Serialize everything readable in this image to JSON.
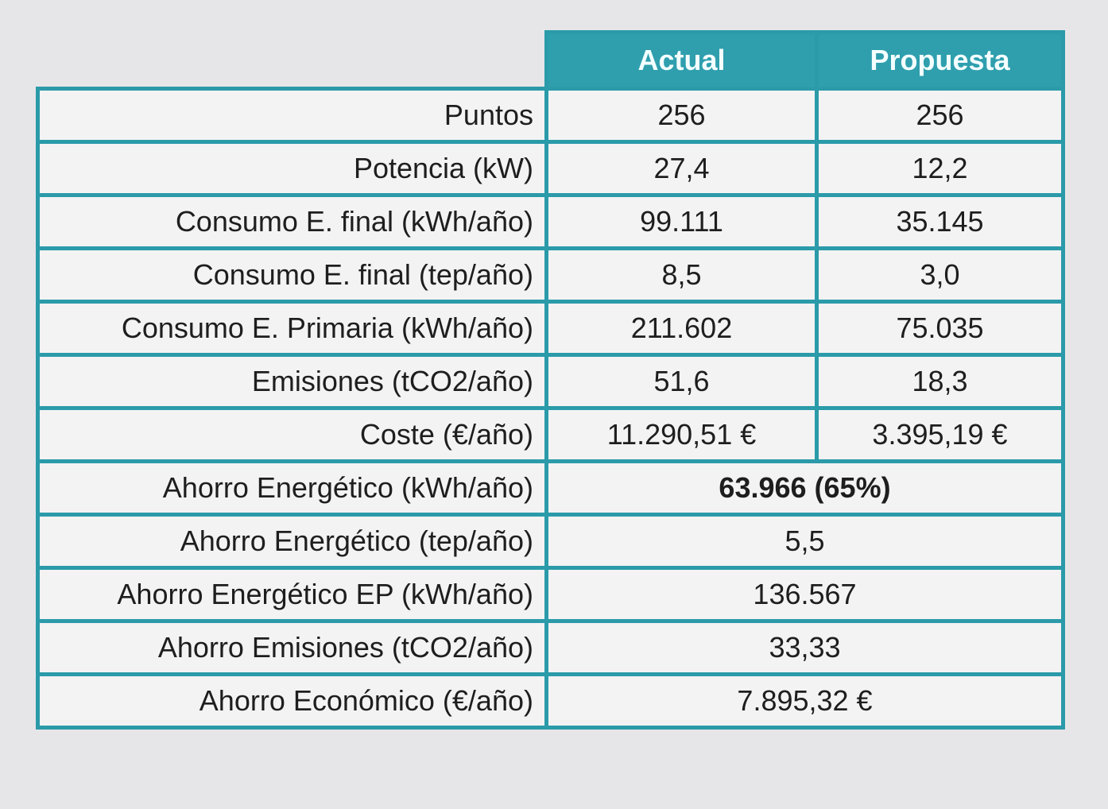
{
  "table": {
    "header": [
      "Actual",
      "Propuesta"
    ],
    "rows": [
      [
        "Puntos",
        "256",
        "256"
      ],
      [
        "Potencia (kW)",
        "27,4",
        "12,2"
      ],
      [
        "Consumo E. final (kWh/año)",
        "99.111",
        "35.145"
      ],
      [
        "Consumo E. final (tep/año)",
        "8,5",
        "3,0"
      ],
      [
        "Consumo E. Primaria (kWh/año)",
        "211.602",
        "75.035"
      ],
      [
        "Emisiones (tCO2/año)",
        "51,6",
        "18,3"
      ],
      [
        "Coste (€/año)",
        "11.290,51 €",
        "3.395,19 €"
      ]
    ],
    "savings": [
      [
        "Ahorro Energético (kWh/año)",
        "63.966 (65%)"
      ],
      [
        "Ahorro Energético (tep/año)",
        "5,5"
      ],
      [
        "Ahorro Energético EP (kWh/año)",
        "136.567"
      ],
      [
        "Ahorro Emisiones (tCO2/año)",
        "33,33"
      ],
      [
        "Ahorro Económico (€/año)",
        "7.895,32 €"
      ]
    ]
  }
}
